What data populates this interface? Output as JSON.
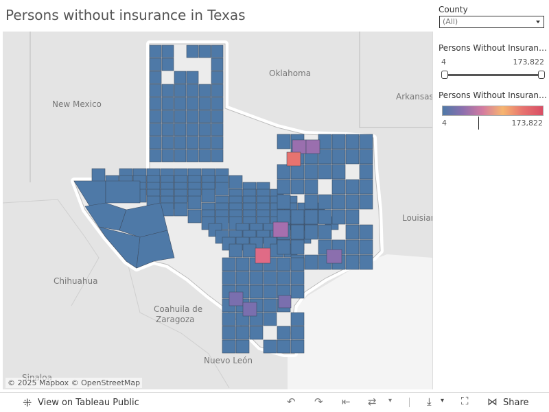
{
  "title": "Persons without insurance in Texas",
  "map": {
    "labels": {
      "oklahoma": "Oklahoma",
      "new_mexico": "New Mexico",
      "arkansas": "Arkansas",
      "louisiana": "Louisian",
      "chihuahua": "Chihuahua",
      "coahuila": "Coahuila de",
      "zaragoza": "Zaragoza",
      "nuevo_leon": "Nuevo León",
      "sinaloa": "Sinaloa"
    },
    "attribution": "© 2025 Mapbox  © OpenStreetMap",
    "county_color": "#4e79a7",
    "land_color": "#e4e4e4",
    "water_color": "#f4f4f4"
  },
  "filters": {
    "county_label": "County",
    "county_value": "(All)",
    "range_label": "Persons Without Insuranc...",
    "range_min": "4",
    "range_max": "173,822",
    "legend_label": "Persons Without Insuranc...",
    "legend_min": "4",
    "legend_max": "173,822"
  },
  "toolbar": {
    "view_label": "View on Tableau Public",
    "share_label": "Share",
    "icons": [
      "undo-icon",
      "redo-icon",
      "revert-icon",
      "refresh-icon",
      "download-icon",
      "fullscreen-icon",
      "share-icon"
    ]
  }
}
